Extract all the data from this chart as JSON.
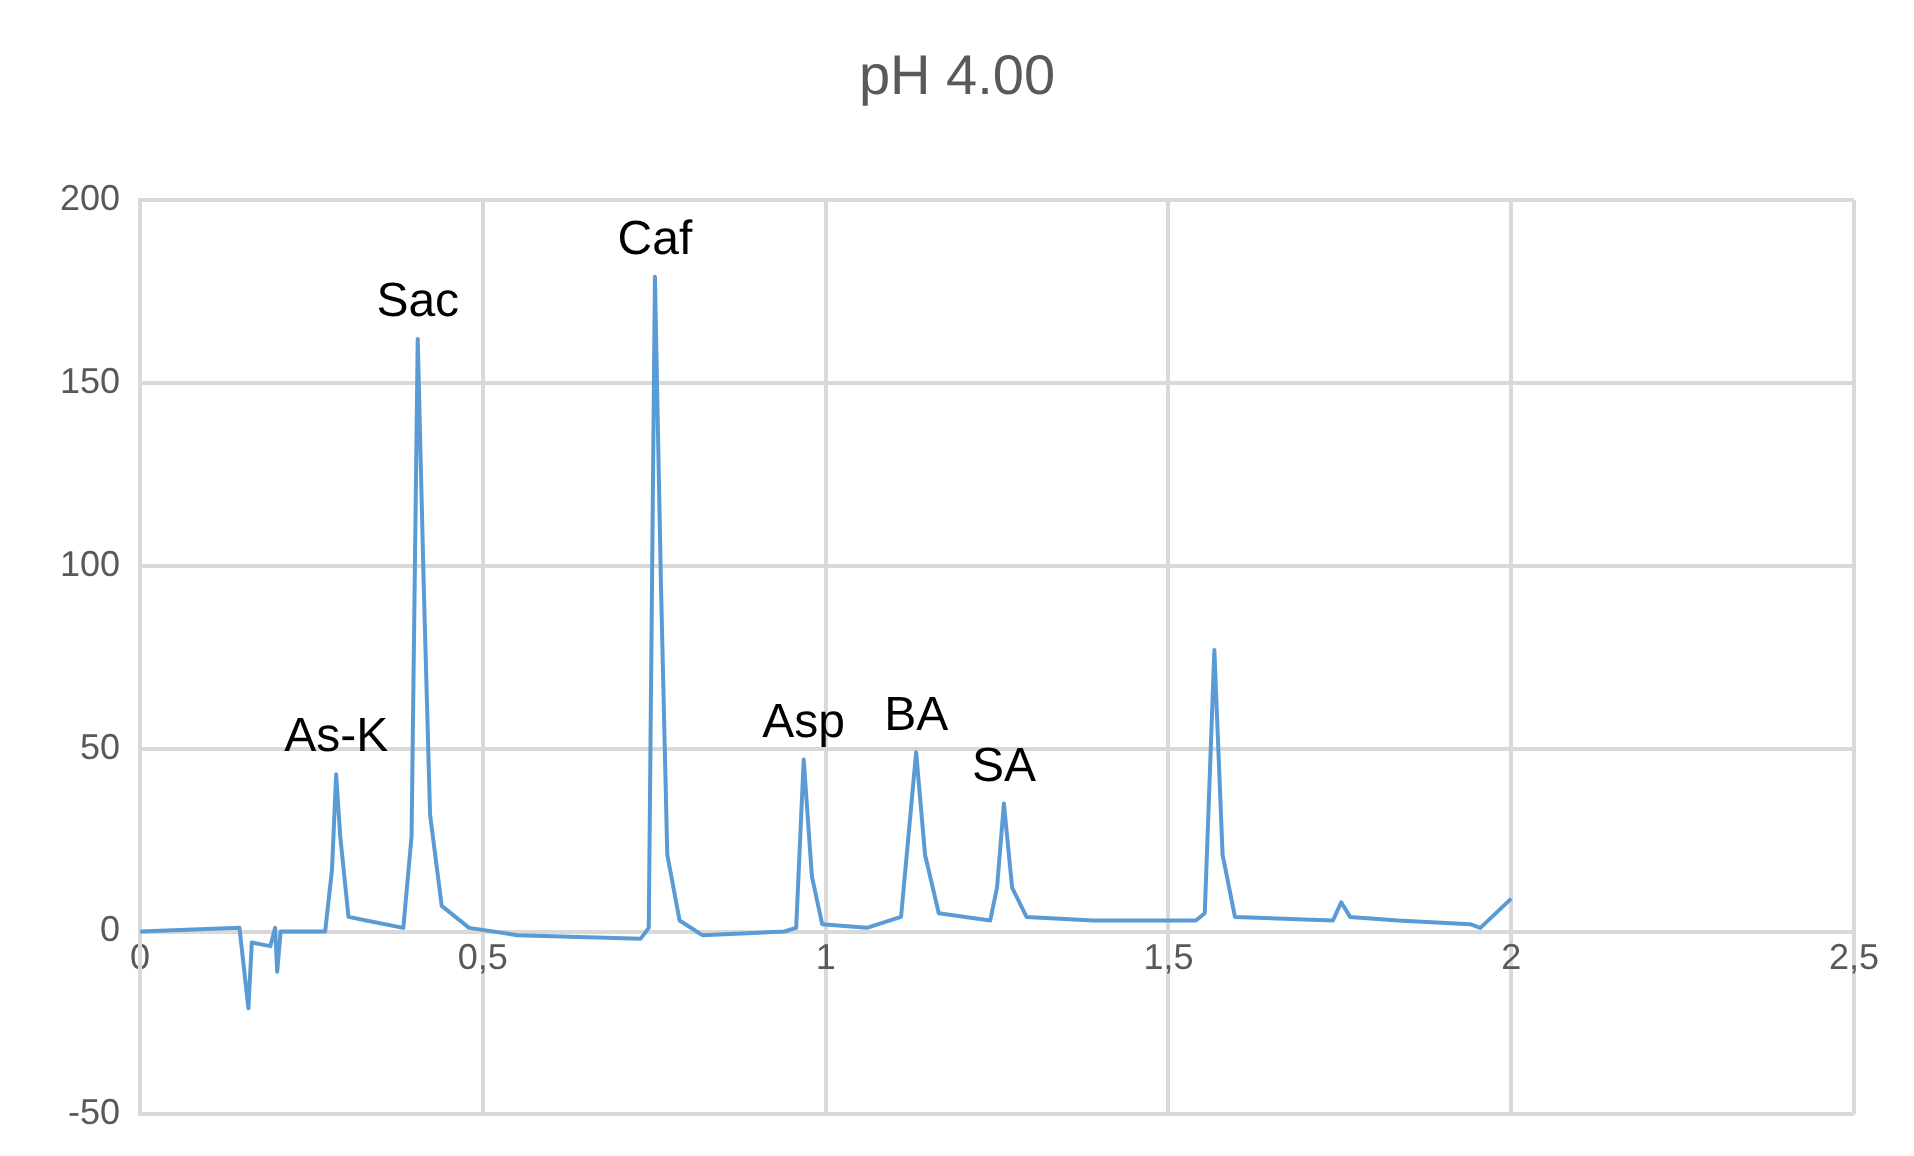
{
  "chart_data": {
    "type": "line",
    "title": "pH 4.00",
    "x": [
      0,
      0.145,
      0.158,
      0.163,
      0.19,
      0.197,
      0.2,
      0.205,
      0.27,
      0.28,
      0.286,
      0.292,
      0.304,
      0.33,
      0.384,
      0.396,
      0.405,
      0.414,
      0.423,
      0.44,
      0.48,
      0.55,
      0.73,
      0.742,
      0.751,
      0.76,
      0.769,
      0.787,
      0.82,
      0.94,
      0.957,
      0.968,
      0.98,
      0.995,
      1.06,
      1.11,
      1.132,
      1.145,
      1.165,
      1.24,
      1.25,
      1.26,
      1.272,
      1.293,
      1.39,
      1.54,
      1.553,
      1.567,
      1.579,
      1.597,
      1.74,
      1.752,
      1.765,
      1.835,
      1.94,
      1.955,
      2.0
    ],
    "series": [
      {
        "color": "#5b9bd5",
        "values": [
          0,
          1,
          -21,
          -3,
          -4,
          1,
          -11,
          0,
          0,
          17,
          43,
          26,
          4,
          3,
          1,
          26,
          162,
          93,
          32,
          7,
          1,
          -1,
          -2,
          1,
          179,
          93,
          21,
          3,
          -1,
          0,
          1,
          47,
          15,
          2,
          1,
          4,
          49,
          21,
          5,
          3,
          12,
          35,
          12,
          4,
          3,
          3,
          5,
          77,
          21,
          4,
          3,
          8,
          4,
          3,
          2,
          1,
          9
        ]
      }
    ],
    "xlim": [
      0,
      2.5
    ],
    "xticks": [
      0,
      {
        "value": 0.5,
        "label": "0,5"
      },
      1,
      {
        "value": 1.5,
        "label": "1,5"
      },
      2,
      {
        "value": 2.5,
        "label": "2,5"
      }
    ],
    "ylim": [
      -50,
      200
    ],
    "yticks": [
      -50,
      0,
      50,
      100,
      150,
      200
    ],
    "grid": true,
    "marker": "none",
    "line_style": "solid",
    "annotations": [
      {
        "text": "As-K",
        "x": 0.286,
        "y": 43
      },
      {
        "text": "Sac",
        "x": 0.405,
        "y": 162
      },
      {
        "text": "Caf",
        "x": 0.751,
        "y": 179
      },
      {
        "text": "Asp",
        "x": 0.968,
        "y": 47
      },
      {
        "text": "BA",
        "x": 1.132,
        "y": 49
      },
      {
        "text": "SA",
        "x": 1.26,
        "y": 35
      }
    ]
  }
}
